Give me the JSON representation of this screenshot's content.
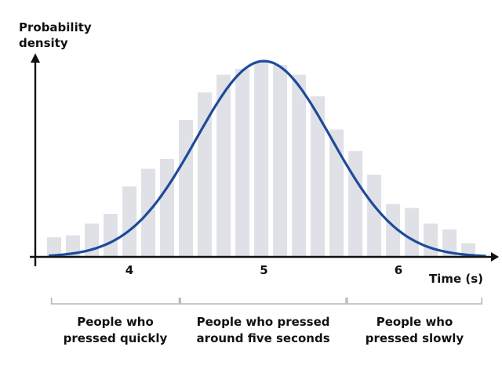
{
  "chart_data": {
    "type": "bar",
    "title": "",
    "ylabel_lines": [
      "Probability",
      "density"
    ],
    "xlabel": "Time (s)",
    "x_ticks": [
      4,
      5,
      6
    ],
    "xlim": [
      3.3,
      6.7
    ],
    "ylim": [
      0,
      1.0
    ],
    "bin_width": 0.14,
    "bins": [
      {
        "x": 3.44,
        "y": 0.1
      },
      {
        "x": 3.58,
        "y": 0.11
      },
      {
        "x": 3.72,
        "y": 0.17
      },
      {
        "x": 3.86,
        "y": 0.22
      },
      {
        "x": 4.0,
        "y": 0.36
      },
      {
        "x": 4.14,
        "y": 0.45
      },
      {
        "x": 4.28,
        "y": 0.5
      },
      {
        "x": 4.42,
        "y": 0.7
      },
      {
        "x": 4.56,
        "y": 0.84
      },
      {
        "x": 4.7,
        "y": 0.93
      },
      {
        "x": 4.84,
        "y": 0.96
      },
      {
        "x": 4.98,
        "y": 1.0
      },
      {
        "x": 5.12,
        "y": 0.98
      },
      {
        "x": 5.26,
        "y": 0.93
      },
      {
        "x": 5.4,
        "y": 0.82
      },
      {
        "x": 5.54,
        "y": 0.65
      },
      {
        "x": 5.68,
        "y": 0.54
      },
      {
        "x": 5.82,
        "y": 0.42
      },
      {
        "x": 5.96,
        "y": 0.27
      },
      {
        "x": 6.1,
        "y": 0.25
      },
      {
        "x": 6.24,
        "y": 0.17
      },
      {
        "x": 6.38,
        "y": 0.14
      },
      {
        "x": 6.52,
        "y": 0.07
      }
    ],
    "curve": {
      "type": "normal",
      "mean": 5.0,
      "sd": 0.5,
      "baseline": 0.0,
      "peak": 1.0
    },
    "colors": {
      "bars": "#dfe1e6",
      "curve": "#1f4a9a",
      "axis": "#111111",
      "bracket": "#b3b8c2"
    },
    "groups": [
      {
        "lines": [
          "People who",
          "pressed quickly"
        ],
        "from": 3.42,
        "to": 4.37
      },
      {
        "lines": [
          "People who pressed",
          "around five seconds"
        ],
        "from": 4.38,
        "to": 5.61
      },
      {
        "lines": [
          "People who",
          "pressed slowly"
        ],
        "from": 5.62,
        "to": 6.62
      }
    ]
  }
}
